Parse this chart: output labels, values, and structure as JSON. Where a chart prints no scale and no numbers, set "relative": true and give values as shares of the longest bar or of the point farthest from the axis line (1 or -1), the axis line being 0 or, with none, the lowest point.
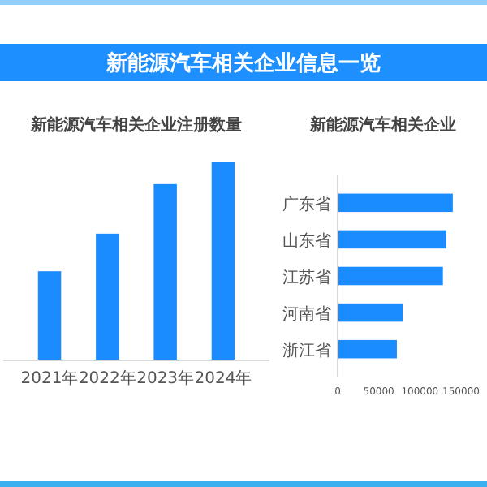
{
  "chart_data": [
    {
      "type": "bar",
      "title": "新能源汽车相关企业信息一览",
      "subtitle": "新能源汽车相关企业注册数量",
      "categories": [
        "2021年",
        "2022年",
        "2023年",
        "2024年"
      ],
      "values": [
        0.45,
        0.64,
        0.89,
        1
      ],
      "color": "#1a8cff",
      "relative": true
    },
    {
      "type": "bar",
      "orientation": "horizontal",
      "title": "新能源汽车相关企业",
      "categories": [
        "广东省",
        "山东省",
        "江苏省",
        "河南省",
        "浙江省"
      ],
      "values": [
        140000,
        132000,
        128000,
        79000,
        72000
      ],
      "color": "#1a8cff",
      "xlim": [
        0,
        150000
      ],
      "xticks": [
        0,
        50000,
        100000,
        150000
      ]
    }
  ]
}
